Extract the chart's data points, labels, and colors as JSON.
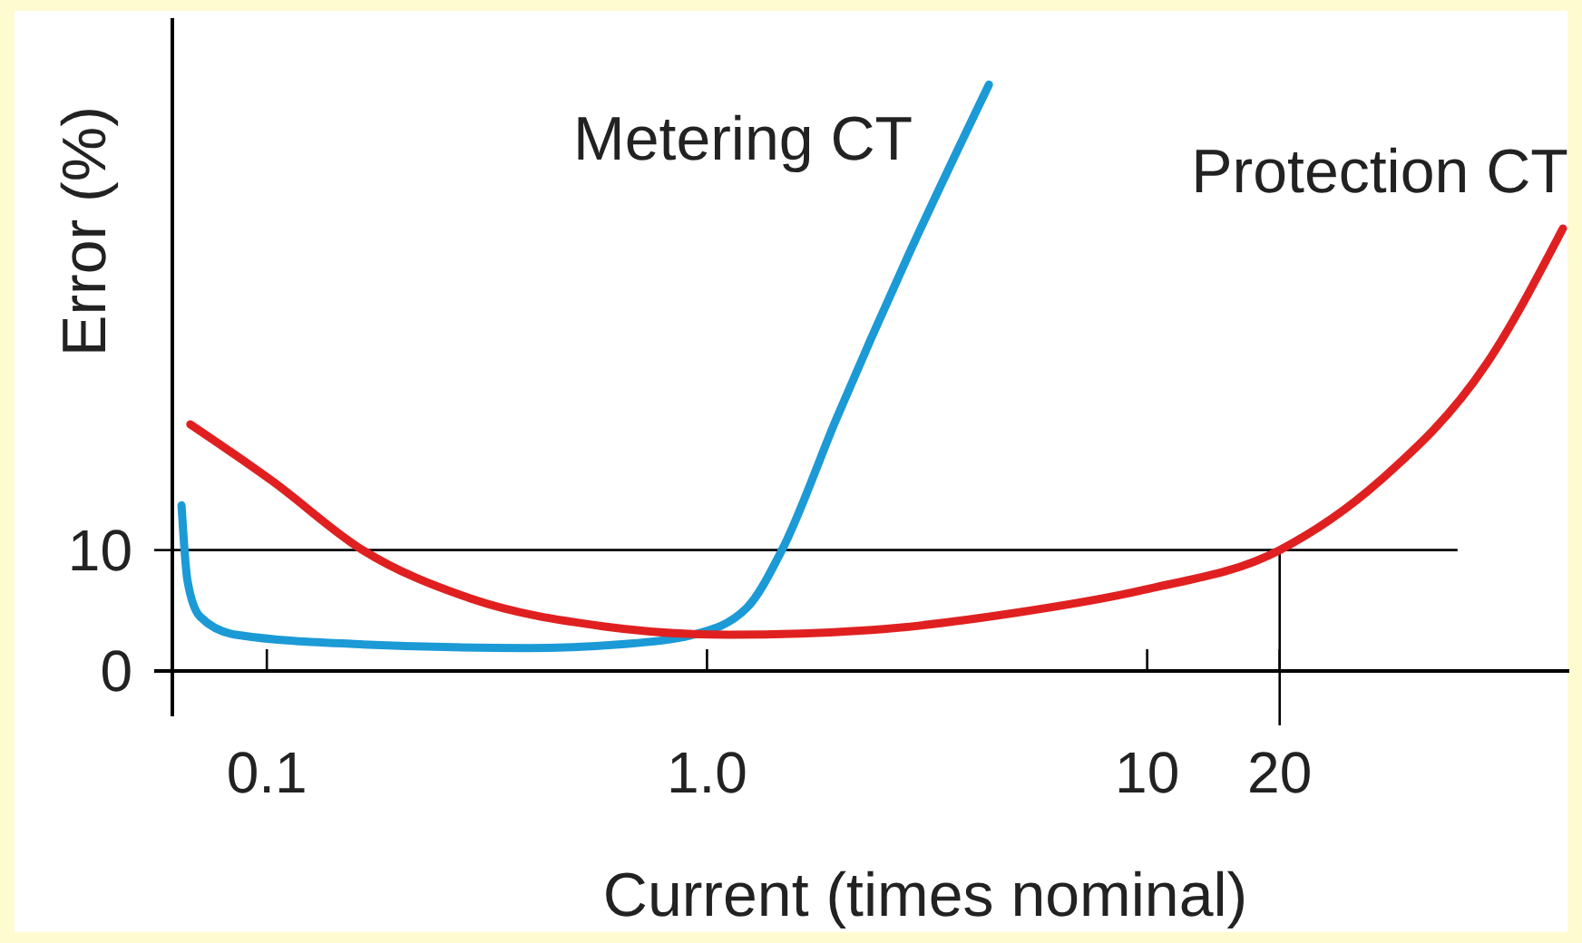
{
  "chart_data": {
    "type": "line",
    "xlabel": "Current (times nominal)",
    "ylabel": "Error (%)",
    "log": "x",
    "xlim": [
      0.061,
      91
    ],
    "xticks": [
      0.1,
      {
        "value": 1,
        "label": "1.0"
      },
      10,
      20
    ],
    "ylim": [
      0,
      54
    ],
    "yticks": [
      0,
      10
    ],
    "grid": false,
    "legend": false,
    "marker": "none",
    "line_style": "solid",
    "ref_lines": [
      {
        "axis": "y",
        "value": 10,
        "color": "#000000"
      },
      {
        "axis": "x",
        "value": 20,
        "color": "#000000"
      }
    ],
    "series": [
      {
        "name": "Metering CT",
        "color": "#1b9ad6",
        "x": [
          0.064,
          0.066,
          0.0705,
          0.085,
          0.165,
          0.39,
          0.63,
          0.93,
          1.23,
          1.48,
          1.97,
          2.86,
          4.37
        ],
        "values": [
          13.7,
          7.5,
          4.5,
          3.0,
          2.2,
          1.9,
          2.2,
          3.0,
          5.2,
          10,
          20.9,
          34.3,
          48.5
        ]
      },
      {
        "name": "Protection CT",
        "color": "#e02020",
        "x": [
          0.067,
          0.103,
          0.165,
          0.29,
          0.58,
          1.12,
          2.37,
          5.0,
          9.8,
          20,
          33.7,
          59,
          88
        ],
        "values": [
          20.4,
          15.7,
          10,
          6.0,
          3.7,
          3.0,
          3.4,
          4.8,
          6.7,
          10,
          15.7,
          25.4,
          36.6
        ]
      }
    ]
  }
}
